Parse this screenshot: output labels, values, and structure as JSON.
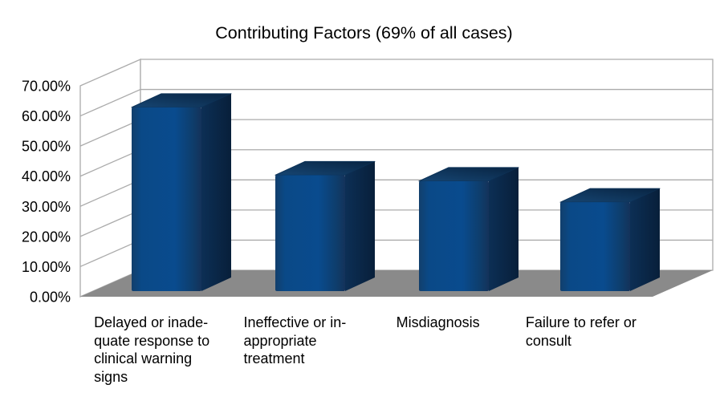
{
  "chart_data": {
    "type": "bar",
    "style": "3d-column",
    "title": "Contributing Factors (69% of all cases)",
    "categories": [
      "Delayed or inadequate response to clinical warning signs",
      "Ineffective or inappropriate treatment",
      "Misdiagnosis",
      "Failure to refer or consult"
    ],
    "category_label_lines": [
      [
        "Delayed or inade-",
        "quate response to",
        "clinical warning",
        "signs"
      ],
      [
        "Ineffective or in-",
        "appropriate",
        "treatment"
      ],
      [
        "Misdiagnosis"
      ],
      [
        "Failure to refer or",
        "consult"
      ]
    ],
    "values": [
      61,
      38.5,
      36.5,
      29.5
    ],
    "unit": "%",
    "xlabel": "",
    "ylabel": "",
    "ylim": [
      0,
      70
    ],
    "y_ticks": [
      "0.00%",
      "10.00%",
      "20.00%",
      "30.00%",
      "40.00%",
      "50.00%",
      "60.00%",
      "70.00%"
    ],
    "grid": true,
    "legend": "none",
    "colors": {
      "bar_front_light": "#094b8e",
      "bar_front_dark": "#123f6c",
      "bar_side_light": "#0c2f55",
      "bar_side_dark": "#081f3a",
      "bar_top_light": "#164572",
      "bar_top_dark": "#082442",
      "floor": "#8a8a8a",
      "wall_line": "#ababab",
      "wall_fill": "#ffffff",
      "text": "#000000",
      "background": "#ffffff"
    }
  }
}
